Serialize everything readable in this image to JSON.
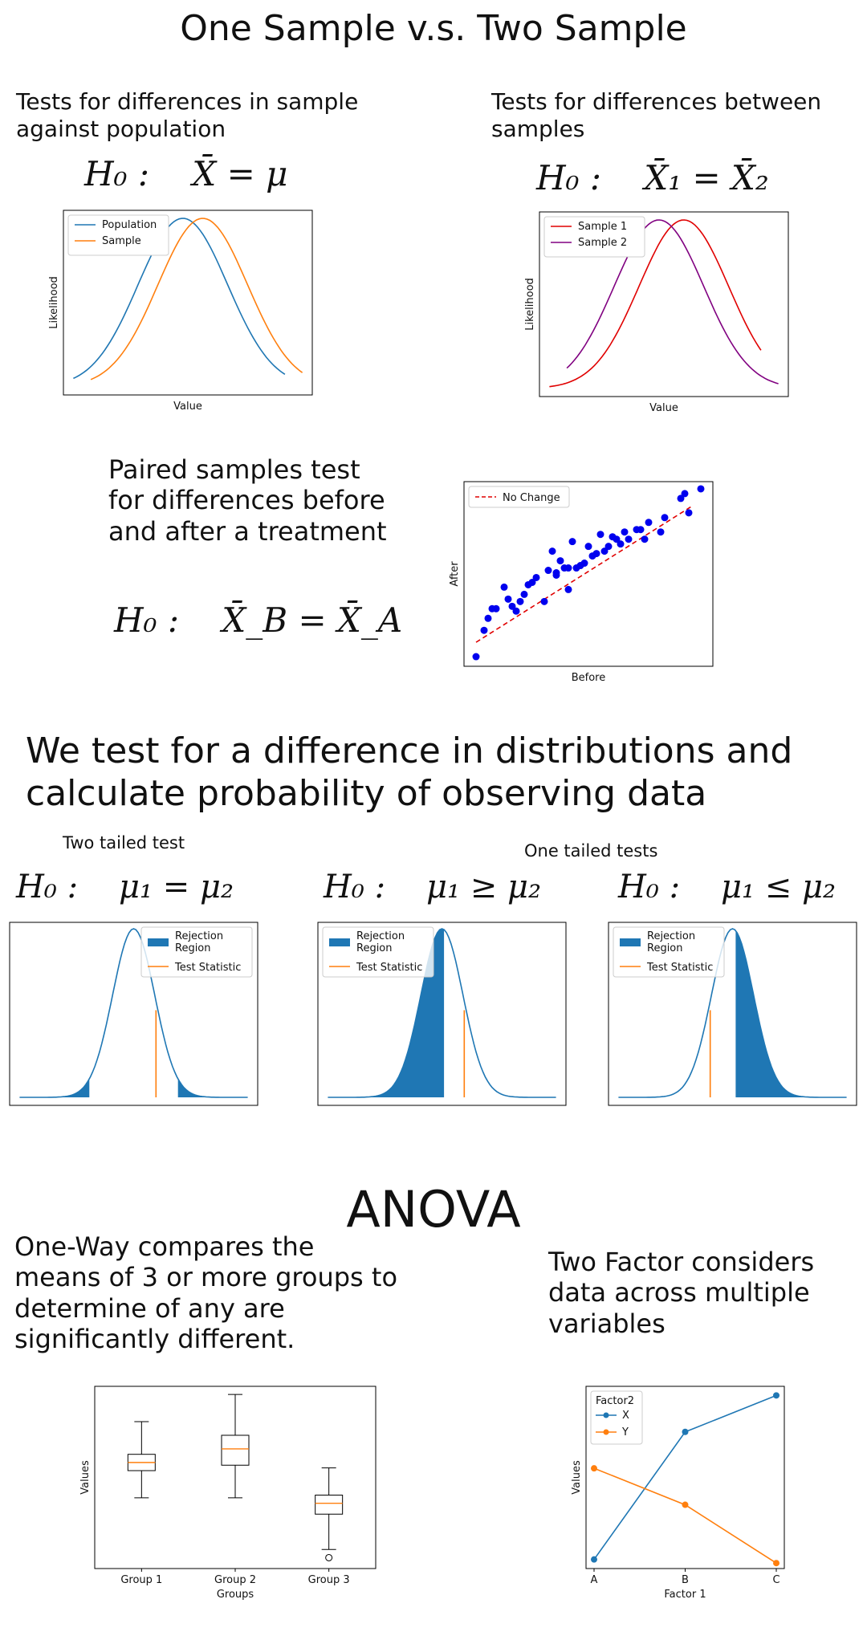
{
  "page_title": "One Sample v.s. Two Sample",
  "one_sample": {
    "caption": "Tests for differences in sample against population",
    "hypothesis": "H₀ :    X̄ = μ",
    "chart": {
      "xlabel": "Value",
      "ylabel": "Likelihood",
      "legend": [
        "Population",
        "Sample"
      ],
      "colors": [
        "#1f77b4",
        "#ff7f0e"
      ]
    }
  },
  "two_sample": {
    "caption": "Tests for differences between samples",
    "hypothesis": "H₀ :    X̄₁ = X̄₂",
    "chart": {
      "xlabel": "Value",
      "ylabel": "Likelihood",
      "legend": [
        "Sample 1",
        "Sample 2"
      ],
      "colors": [
        "#e00000",
        "#800080"
      ]
    }
  },
  "paired": {
    "caption": "Paired samples test for differences before and after a treatment",
    "hypothesis": "H₀ :    X̄_B = X̄_A",
    "chart": {
      "xlabel": "Before",
      "ylabel": "After",
      "legend": [
        "No Change"
      ]
    }
  },
  "section2_title": "We test for a difference in distributions and calculate probability of observing data",
  "two_tailed_label": "Two tailed test",
  "one_tailed_label": "One tailed tests",
  "tail_tests": [
    {
      "hypothesis": "H₀ :    μ₁ = μ₂",
      "legend": [
        "Rejection Region",
        "Test Statistic"
      ]
    },
    {
      "hypothesis": "H₀ :    μ₁ ≥ μ₂",
      "legend": [
        "Rejection Region",
        "Test Statistic"
      ]
    },
    {
      "hypothesis": "H₀ :    μ₁ ≤ μ₂",
      "legend": [
        "Rejection Region",
        "Test Statistic"
      ]
    }
  ],
  "anova_title": "ANOVA",
  "one_way_caption": "One-Way compares the means of 3 or more groups to determine of any are significantly different.",
  "two_factor_caption": "Two Factor considers data across multiple variables",
  "chart_data": [
    {
      "type": "scatter",
      "xlabel": "Before",
      "ylabel": "After",
      "legend": [
        "No Change"
      ],
      "points": [
        [
          1.0,
          1.0
        ],
        [
          1.2,
          2.1
        ],
        [
          1.3,
          2.6
        ],
        [
          1.4,
          3.0
        ],
        [
          1.5,
          3.0
        ],
        [
          1.7,
          3.9
        ],
        [
          1.8,
          3.4
        ],
        [
          1.9,
          3.1
        ],
        [
          2.0,
          2.9
        ],
        [
          2.1,
          3.3
        ],
        [
          2.2,
          3.6
        ],
        [
          2.3,
          4.0
        ],
        [
          2.4,
          4.1
        ],
        [
          2.5,
          4.3
        ],
        [
          2.7,
          3.3
        ],
        [
          2.8,
          4.6
        ],
        [
          2.9,
          5.4
        ],
        [
          3.0,
          4.4
        ],
        [
          3.0,
          4.5
        ],
        [
          3.1,
          5.0
        ],
        [
          3.2,
          4.7
        ],
        [
          3.3,
          3.8
        ],
        [
          3.3,
          4.7
        ],
        [
          3.4,
          5.8
        ],
        [
          3.5,
          4.7
        ],
        [
          3.6,
          4.8
        ],
        [
          3.7,
          4.9
        ],
        [
          3.8,
          5.6
        ],
        [
          3.9,
          5.2
        ],
        [
          4.0,
          5.3
        ],
        [
          4.1,
          6.1
        ],
        [
          4.2,
          5.4
        ],
        [
          4.3,
          5.6
        ],
        [
          4.4,
          6.0
        ],
        [
          4.5,
          5.9
        ],
        [
          4.6,
          5.7
        ],
        [
          4.7,
          6.2
        ],
        [
          4.8,
          5.9
        ],
        [
          5.0,
          6.3
        ],
        [
          5.1,
          6.3
        ],
        [
          5.2,
          5.9
        ],
        [
          5.3,
          6.6
        ],
        [
          5.6,
          6.2
        ],
        [
          5.7,
          6.8
        ],
        [
          6.1,
          7.6
        ],
        [
          6.2,
          7.8
        ],
        [
          6.3,
          7.0
        ],
        [
          6.6,
          8.0
        ]
      ],
      "line": [
        [
          1.0,
          1.6
        ],
        [
          6.4,
          7.3
        ]
      ]
    },
    {
      "type": "box",
      "xlabel": "Groups",
      "ylabel": "Values",
      "categories": [
        "Group 1",
        "Group 2",
        "Group 3"
      ],
      "boxes": [
        {
          "whislo": 3.4,
          "q1": 4.4,
          "med": 4.7,
          "q3": 5.0,
          "whishi": 6.2,
          "fliers": []
        },
        {
          "whislo": 3.4,
          "q1": 4.6,
          "med": 5.2,
          "q3": 5.7,
          "whishi": 7.2,
          "fliers": []
        },
        {
          "whislo": 1.5,
          "q1": 2.8,
          "med": 3.2,
          "q3": 3.5,
          "whishi": 4.5,
          "fliers": [
            1.2
          ]
        }
      ],
      "ylim": [
        0.8,
        7.5
      ]
    },
    {
      "type": "line",
      "xlabel": "Factor 1",
      "ylabel": "Values",
      "categories": [
        "A",
        "B",
        "C"
      ],
      "legend_title": "Factor2",
      "series": [
        {
          "name": "X",
          "values": [
            1,
            8,
            10
          ],
          "color": "#1f77b4"
        },
        {
          "name": "Y",
          "values": [
            6,
            4,
            0.8
          ],
          "color": "#ff7f0e"
        }
      ],
      "ylim": [
        0.5,
        10.5
      ]
    }
  ]
}
